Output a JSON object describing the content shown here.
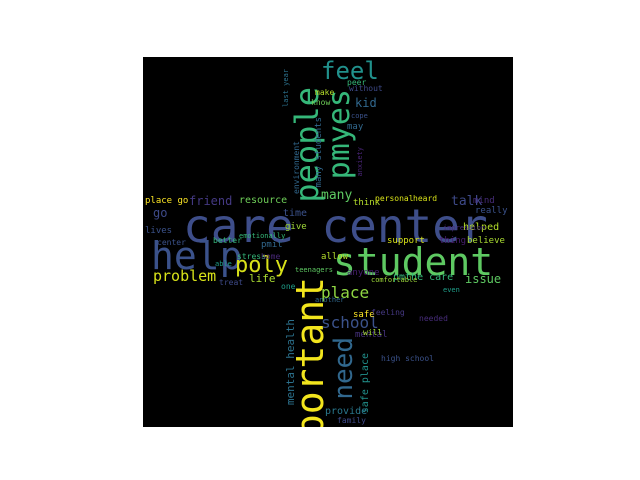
{
  "wordcloud": {
    "words": [
      {
        "text": "care center",
        "color": "#3e4e8a"
      },
      {
        "text": "student",
        "color": "#5ec962"
      },
      {
        "text": "important",
        "color": "#f2e51d"
      },
      {
        "text": "help",
        "color": "#3b528b"
      },
      {
        "text": "people",
        "color": "#35b779"
      },
      {
        "text": "pmyes",
        "color": "#35b779"
      },
      {
        "text": "feel",
        "color": "#21918c"
      },
      {
        "text": "need",
        "color": "#31688e"
      },
      {
        "text": "poly",
        "color": "#d8e219"
      },
      {
        "text": "place",
        "color": "#90d743"
      },
      {
        "text": "school",
        "color": "#3b528b"
      },
      {
        "text": "problem",
        "color": "#d8e219"
      },
      {
        "text": "friend",
        "color": "#443983"
      },
      {
        "text": "talk",
        "color": "#3e4a89"
      },
      {
        "text": "many",
        "color": "#5ec962"
      },
      {
        "text": "kid",
        "color": "#31688e"
      },
      {
        "text": "mental health",
        "color": "#2c728e"
      },
      {
        "text": "safe place",
        "color": "#21918c"
      },
      {
        "text": "resource",
        "color": "#6ece58"
      },
      {
        "text": "time",
        "color": "#3b528b"
      },
      {
        "text": "go",
        "color": "#3e4a89"
      },
      {
        "text": "life",
        "color": "#aadc32"
      },
      {
        "text": "issue",
        "color": "#5ec962"
      },
      {
        "text": "helped",
        "color": "#b5de2b"
      },
      {
        "text": "pmthe care",
        "color": "#35b779"
      },
      {
        "text": "provide",
        "color": "#2a788e"
      },
      {
        "text": "many students",
        "color": "#31688e"
      },
      {
        "text": "mind",
        "color": "#472c7a"
      },
      {
        "text": "really",
        "color": "#3b528b"
      },
      {
        "text": "thing",
        "color": "#481f70"
      },
      {
        "text": "believe",
        "color": "#aadc32"
      },
      {
        "text": "pmit",
        "color": "#31688e"
      },
      {
        "text": "better",
        "color": "#35b779"
      },
      {
        "text": "lives",
        "color": "#3b528b"
      },
      {
        "text": "give",
        "color": "#a0da39"
      },
      {
        "text": "allow",
        "color": "#b5de2b"
      },
      {
        "text": "think",
        "color": "#b5de2b"
      },
      {
        "text": "support",
        "color": "#d8e219"
      },
      {
        "text": "safe",
        "color": "#fde725"
      },
      {
        "text": "needed",
        "color": "#472c7a"
      },
      {
        "text": "place go",
        "color": "#fde725"
      },
      {
        "text": "personal",
        "color": "#d8e219"
      },
      {
        "text": "heard",
        "color": "#d8e219"
      },
      {
        "text": "environment",
        "color": "#31688e"
      },
      {
        "text": "high school",
        "color": "#3b528b"
      },
      {
        "text": "mental",
        "color": "#46337f"
      },
      {
        "text": "feeling",
        "color": "#453882"
      },
      {
        "text": "comfortable",
        "color": "#9fda3a"
      },
      {
        "text": "will",
        "color": "#a5db36"
      },
      {
        "text": "family",
        "color": "#3e4a89"
      },
      {
        "text": "know",
        "color": "#6ece58"
      },
      {
        "text": "make",
        "color": "#b5de2b"
      },
      {
        "text": "stress",
        "color": "#35b779"
      },
      {
        "text": "home",
        "color": "#482878"
      },
      {
        "text": "center",
        "color": "#3b528b"
      },
      {
        "text": "one",
        "color": "#1f9e89"
      },
      {
        "text": "anyone",
        "color": "#481f70"
      },
      {
        "text": "may",
        "color": "#31688e"
      },
      {
        "text": "peer",
        "color": "#35b779"
      },
      {
        "text": "without",
        "color": "#3e4a89"
      },
      {
        "text": "anxiety",
        "color": "#482475"
      },
      {
        "text": "able",
        "color": "#1f9e89"
      },
      {
        "text": "emotionally",
        "color": "#35b779"
      },
      {
        "text": "teenagers",
        "color": "#5ec962"
      },
      {
        "text": "cope",
        "color": "#3b528b"
      },
      {
        "text": "impression",
        "color": "#472c7a"
      },
      {
        "text": "even",
        "color": "#1f9e89"
      },
      {
        "text": "treat",
        "color": "#3e4a89"
      },
      {
        "text": "another",
        "color": "#31688e"
      },
      {
        "text": "last year",
        "color": "#2c728e"
      }
    ]
  }
}
